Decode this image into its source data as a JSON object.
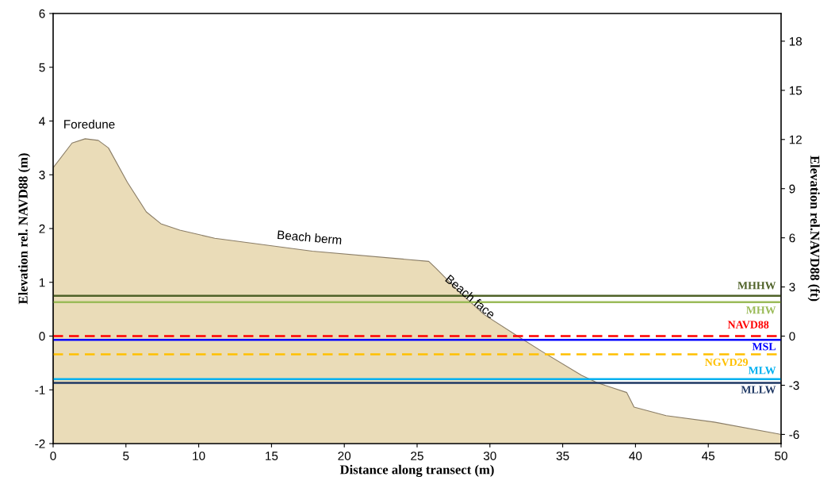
{
  "chart_data": {
    "type": "area",
    "xlabel": "Distance along transect (m)",
    "ylabel": "Elevation rel. NAVD88 (m)",
    "y2label": "Elevation rel.NAVD88 (ft)",
    "xlim": [
      0,
      50
    ],
    "xticks": [
      0,
      5,
      10,
      15,
      20,
      25,
      30,
      35,
      40,
      45,
      50
    ],
    "ylim": [
      -2,
      6
    ],
    "yticks": [
      -2,
      -1,
      0,
      1,
      2,
      3,
      4,
      5,
      6
    ],
    "y2lim": [
      -6.56,
      19.69
    ],
    "y2ticks": [
      -6,
      -3,
      0,
      3,
      6,
      9,
      12,
      15,
      18
    ],
    "series": [
      {
        "color": "#eadcb8",
        "x": [
          0,
          1.3,
          2.2,
          3.1,
          3.8,
          5.1,
          6.4,
          7.4,
          8.7,
          11.1,
          17.8,
          25.8,
          26.3,
          27.9,
          29.6,
          31.9,
          33.6,
          36.3,
          37.4,
          39.4,
          39.9,
          42.1,
          45.4,
          49.8,
          50
        ],
        "values": [
          3.13,
          3.59,
          3.67,
          3.64,
          3.5,
          2.86,
          2.31,
          2.09,
          1.97,
          1.82,
          1.58,
          1.39,
          1.26,
          0.82,
          0.4,
          0.0,
          -0.29,
          -0.73,
          -0.87,
          -1.05,
          -1.32,
          -1.48,
          -1.6,
          -1.82,
          -1.83
        ]
      }
    ],
    "ref_lines": [
      {
        "axis": "y",
        "value": 0.75,
        "label": "MHHW",
        "color": "#4f6228",
        "line_style": "solid"
      },
      {
        "axis": "y",
        "value": 0.63,
        "label": "MHW",
        "color": "#9bbb59",
        "line_style": "solid"
      },
      {
        "axis": "y",
        "value": 0,
        "label": "NAVD88",
        "color": "#ff0000",
        "line_style": "dashed"
      },
      {
        "axis": "y",
        "value": -0.07,
        "label": "MSL",
        "color": "#0000ff",
        "line_style": "solid"
      },
      {
        "axis": "y",
        "value": -0.34,
        "label": "NGVD29",
        "color": "#ffc000",
        "line_style": "dashed"
      },
      {
        "axis": "y",
        "value": -0.8,
        "label": "MLW",
        "color": "#00b0f0",
        "line_style": "solid"
      },
      {
        "axis": "y",
        "value": -0.87,
        "label": "MLLW",
        "color": "#1f3864",
        "line_style": "solid"
      }
    ],
    "annotations": [
      "Foredune",
      "Beach berm",
      {
        "text": "Beach face",
        "x": 28.6,
        "y": 0.72
      }
    ],
    "grid": false,
    "legend": false
  }
}
